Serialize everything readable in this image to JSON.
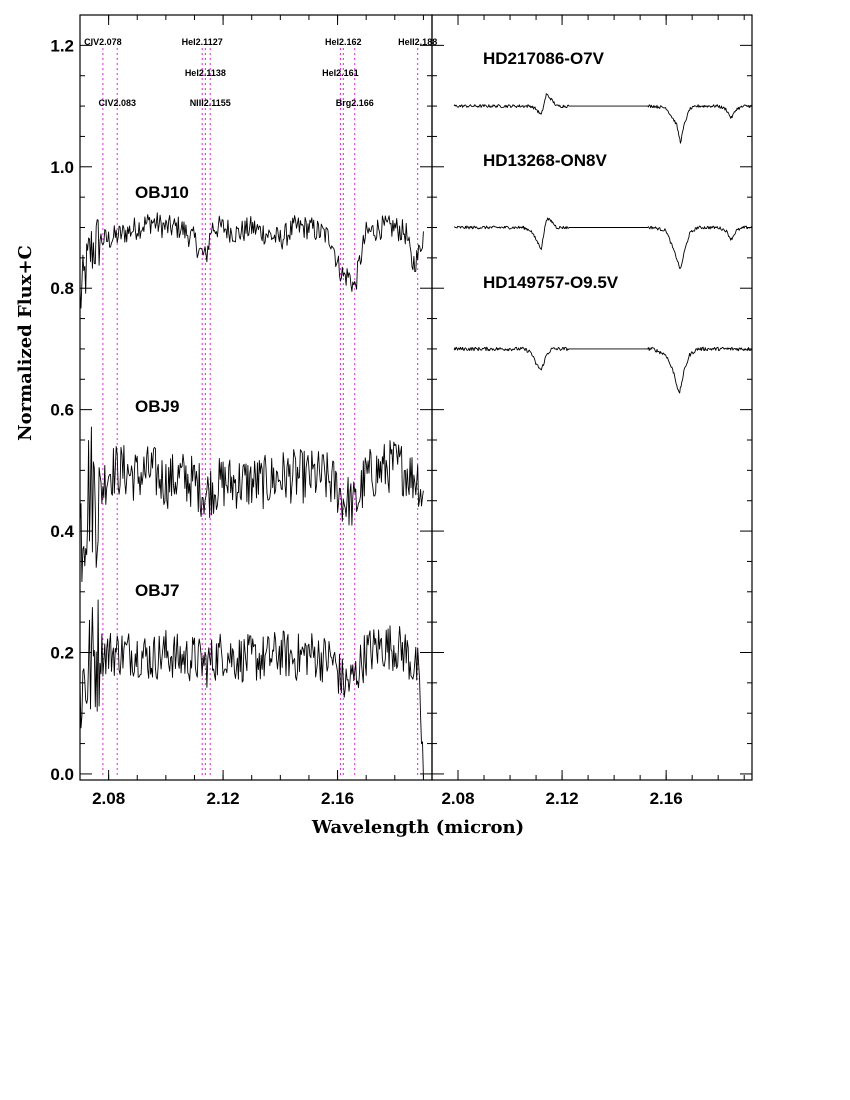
{
  "figure": {
    "xlabel": "Wavelength (micron)",
    "ylabel": "Normalized Flux+C"
  },
  "colors": {
    "axis": "#000000",
    "spectrum": "#000000",
    "line_marker": "#e020e0"
  },
  "chart_data": [
    {
      "type": "line",
      "panel": "left",
      "xlim": [
        2.07,
        2.193
      ],
      "ylim": [
        -0.01,
        1.25
      ],
      "grid": false,
      "x_ticks": [
        2.08,
        2.12,
        2.16
      ],
      "x_tick_labels": [
        "2.08",
        "2.12",
        "2.16"
      ],
      "y_ticks": [
        0.0,
        0.2,
        0.4,
        0.6,
        0.8,
        1.0,
        1.2
      ],
      "y_tick_labels": [
        "0.0",
        "0.2",
        "0.4",
        "0.6",
        "0.8",
        "1.0",
        "1.2"
      ],
      "line_markers": [
        {
          "x": 2.078,
          "label": "CIV2.078",
          "row": 0
        },
        {
          "x": 2.083,
          "label": "CIV2.083",
          "row": 2
        },
        {
          "x": 2.1127,
          "label": "HeI2.1127",
          "row": 0
        },
        {
          "x": 2.1138,
          "label": "HeI2.1138",
          "row": 1
        },
        {
          "x": 2.1155,
          "label": "NIII2.1155",
          "row": 2
        },
        {
          "x": 2.161,
          "label": "HeI2.161",
          "row": 1
        },
        {
          "x": 2.162,
          "label": "HeI2.162",
          "row": 0
        },
        {
          "x": 2.166,
          "label": "Brg2.166",
          "row": 2
        },
        {
          "x": 2.188,
          "label": "HeII2.188",
          "row": 0
        }
      ],
      "series": [
        {
          "name": "OBJ10",
          "x": [
            2.07,
            2.0735,
            2.077,
            2.08,
            2.085,
            2.09,
            2.095,
            2.1,
            2.105,
            2.11,
            2.112,
            2.114,
            2.116,
            2.12,
            2.125,
            2.13,
            2.135,
            2.14,
            2.145,
            2.15,
            2.155,
            2.158,
            2.16,
            2.162,
            2.164,
            2.166,
            2.168,
            2.17,
            2.175,
            2.18,
            2.184,
            2.186,
            2.188,
            2.19
          ],
          "y": [
            0.78,
            0.86,
            0.88,
            0.88,
            0.89,
            0.9,
            0.91,
            0.9,
            0.9,
            0.88,
            0.86,
            0.85,
            0.9,
            0.9,
            0.89,
            0.9,
            0.89,
            0.88,
            0.9,
            0.9,
            0.89,
            0.88,
            0.84,
            0.82,
            0.82,
            0.8,
            0.85,
            0.89,
            0.9,
            0.9,
            0.89,
            0.84,
            0.85,
            0.89
          ],
          "noise": 0.02
        },
        {
          "name": "OBJ9",
          "x": [
            2.07,
            2.0735,
            2.076,
            2.08,
            2.085,
            2.09,
            2.095,
            2.1,
            2.105,
            2.11,
            2.114,
            2.116,
            2.12,
            2.125,
            2.13,
            2.135,
            2.14,
            2.145,
            2.15,
            2.155,
            2.158,
            2.16,
            2.162,
            2.164,
            2.166,
            2.17,
            2.175,
            2.18,
            2.184,
            2.186,
            2.188,
            2.19,
            2.19
          ],
          "y": [
            0.4,
            0.48,
            0.45,
            0.5,
            0.5,
            0.49,
            0.5,
            0.48,
            0.49,
            0.48,
            0.46,
            0.47,
            0.48,
            0.48,
            0.48,
            0.48,
            0.49,
            0.49,
            0.49,
            0.49,
            0.48,
            0.47,
            0.45,
            0.45,
            0.44,
            0.49,
            0.5,
            0.51,
            0.5,
            0.49,
            0.49,
            0.45,
            0.31
          ],
          "noise": 0.045
        },
        {
          "name": "OBJ7",
          "x": [
            2.07,
            2.073,
            2.076,
            2.08,
            2.085,
            2.09,
            2.095,
            2.1,
            2.105,
            2.11,
            2.114,
            2.117,
            2.12,
            2.125,
            2.13,
            2.135,
            2.14,
            2.145,
            2.15,
            2.155,
            2.158,
            2.16,
            2.162,
            2.164,
            2.166,
            2.17,
            2.175,
            2.18,
            2.184,
            2.186,
            2.188,
            2.189,
            2.19
          ],
          "y": [
            0.14,
            0.17,
            0.2,
            0.2,
            0.2,
            0.2,
            0.19,
            0.2,
            0.19,
            0.19,
            0.18,
            0.19,
            0.2,
            0.19,
            0.19,
            0.19,
            0.2,
            0.19,
            0.2,
            0.19,
            0.19,
            0.17,
            0.15,
            0.15,
            0.16,
            0.2,
            0.21,
            0.21,
            0.2,
            0.18,
            0.17,
            0.1,
            0.0
          ],
          "noise": 0.04
        }
      ]
    },
    {
      "type": "line",
      "panel": "right",
      "xlim": [
        2.07,
        2.193
      ],
      "ylim": [
        -0.01,
        1.25
      ],
      "grid": false,
      "x_ticks": [
        2.08,
        2.12,
        2.16
      ],
      "x_tick_labels": [
        "2.08",
        "2.12",
        "2.16"
      ],
      "series": [
        {
          "name": "HD217086-O7V",
          "x": [
            2.0785,
            2.1,
            2.105,
            2.108,
            2.11,
            2.112,
            2.114,
            2.116,
            2.118,
            2.12,
            2.122,
            2.1225,
            2.153,
            2.155,
            2.16,
            2.164,
            2.1655,
            2.167,
            2.169,
            2.172,
            2.176,
            2.18,
            2.183,
            2.185,
            2.187,
            2.19,
            2.193
          ],
          "y": [
            1.1,
            1.1,
            1.1,
            1.1,
            1.095,
            1.085,
            1.12,
            1.11,
            1.1,
            1.1,
            1.1,
            1.1,
            1.1,
            1.1,
            1.097,
            1.07,
            1.04,
            1.07,
            1.095,
            1.1,
            1.1,
            1.1,
            1.095,
            1.08,
            1.095,
            1.1,
            1.1
          ],
          "noise": 0.0025
        },
        {
          "name": "HD13268-ON8V",
          "x": [
            2.0785,
            2.1,
            2.105,
            2.108,
            2.11,
            2.112,
            2.114,
            2.116,
            2.118,
            2.12,
            2.122,
            2.1225,
            2.153,
            2.155,
            2.16,
            2.164,
            2.1655,
            2.167,
            2.169,
            2.172,
            2.176,
            2.18,
            2.183,
            2.185,
            2.187,
            2.19,
            2.193
          ],
          "y": [
            0.9,
            0.9,
            0.9,
            0.895,
            0.88,
            0.865,
            0.915,
            0.91,
            0.9,
            0.9,
            0.9,
            0.9,
            0.9,
            0.9,
            0.895,
            0.85,
            0.83,
            0.86,
            0.89,
            0.9,
            0.9,
            0.9,
            0.895,
            0.88,
            0.895,
            0.9,
            0.9
          ],
          "noise": 0.0025
        },
        {
          "name": "HD149757-O9.5V",
          "x": [
            2.0785,
            2.1,
            2.105,
            2.108,
            2.11,
            2.112,
            2.114,
            2.116,
            2.118,
            2.12,
            2.122,
            2.1225,
            2.153,
            2.155,
            2.16,
            2.163,
            2.165,
            2.167,
            2.169,
            2.172,
            2.176,
            2.18,
            2.183,
            2.185,
            2.187,
            2.19,
            2.193
          ],
          "y": [
            0.7,
            0.7,
            0.7,
            0.695,
            0.675,
            0.665,
            0.69,
            0.7,
            0.7,
            0.7,
            0.7,
            0.7,
            0.7,
            0.7,
            0.69,
            0.66,
            0.625,
            0.665,
            0.69,
            0.7,
            0.7,
            0.7,
            0.7,
            0.7,
            0.7,
            0.7,
            0.7
          ],
          "noise": 0.003
        }
      ]
    }
  ]
}
